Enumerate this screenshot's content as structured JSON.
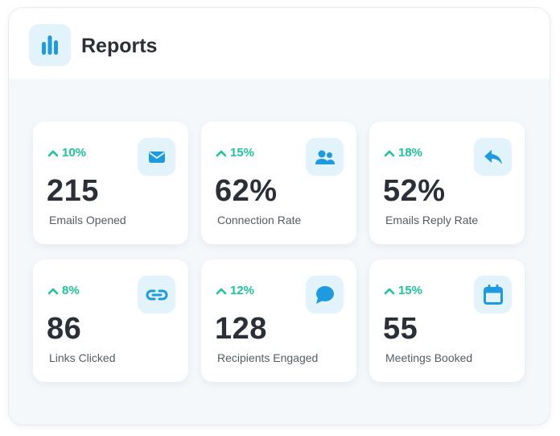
{
  "header": {
    "title": "Reports",
    "icon": "bar-chart-icon"
  },
  "colors": {
    "accent": "#1e9be0",
    "accent_bg": "#e3f3fc",
    "positive": "#1cc39c",
    "text_primary": "#2b2f38",
    "text_secondary": "#555b66"
  },
  "stats": [
    {
      "trend": "10%",
      "trend_direction": "up",
      "value": "215",
      "label": "Emails Opened",
      "icon": "envelope-icon"
    },
    {
      "trend": "15%",
      "trend_direction": "up",
      "value": "62%",
      "label": "Connection Rate",
      "icon": "users-icon"
    },
    {
      "trend": "18%",
      "trend_direction": "up",
      "value": "52%",
      "label": "Emails Reply Rate",
      "icon": "reply-icon"
    },
    {
      "trend": "8%",
      "trend_direction": "up",
      "value": "86",
      "label": "Links Clicked",
      "icon": "link-icon"
    },
    {
      "trend": "12%",
      "trend_direction": "up",
      "value": "128",
      "label": "Recipients Engaged",
      "icon": "chat-bubble-icon"
    },
    {
      "trend": "15%",
      "trend_direction": "up",
      "value": "55",
      "label": "Meetings Booked",
      "icon": "calendar-icon"
    }
  ]
}
